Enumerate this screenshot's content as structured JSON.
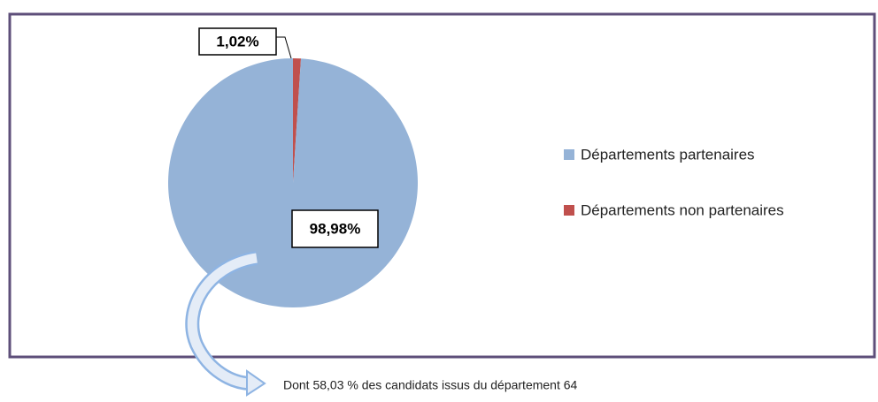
{
  "chart_data": {
    "type": "pie",
    "categories": [
      "Départements partenaires",
      "Départements non partenaires"
    ],
    "values": [
      98.98,
      1.02
    ],
    "value_labels": [
      "98,98%",
      "1,02%"
    ],
    "colors": [
      "#95b3d7",
      "#c0504d"
    ],
    "legend": "right",
    "annotation": "Dont 58,03 % des candidats issus du département 64"
  }
}
